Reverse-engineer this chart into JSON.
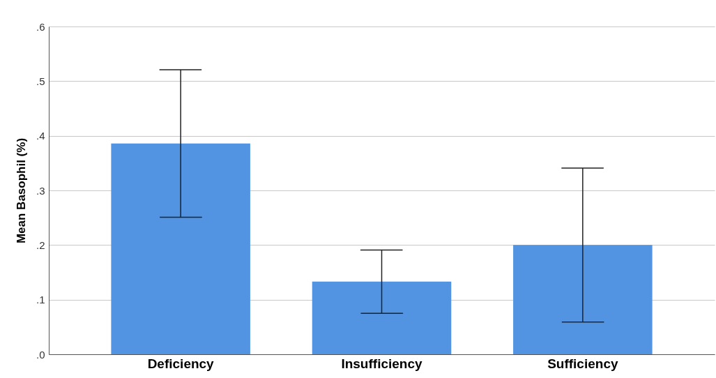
{
  "chart_data": {
    "type": "bar",
    "ylabel": "Mean Basophil (%)",
    "categories": [
      "Deficiency",
      "Insufficiency",
      "Sufficiency"
    ],
    "values": [
      0.386,
      0.133,
      0.2
    ],
    "errors": [
      [
        0.251,
        0.521
      ],
      [
        0.075,
        0.191
      ],
      [
        0.059,
        0.341
      ]
    ],
    "color": "#5294e2",
    "ylim": [
      0,
      0.6
    ],
    "yticks": [
      {
        "value": 0,
        "label": ".0"
      },
      {
        "value": 0.1,
        "label": ".1"
      },
      {
        "value": 0.2,
        "label": ".2"
      },
      {
        "value": 0.3,
        "label": ".3"
      },
      {
        "value": 0.4,
        "label": ".4"
      },
      {
        "value": 0.5,
        "label": ".5"
      },
      {
        "value": 0.6,
        "label": ".6"
      }
    ],
    "grid": "y"
  }
}
